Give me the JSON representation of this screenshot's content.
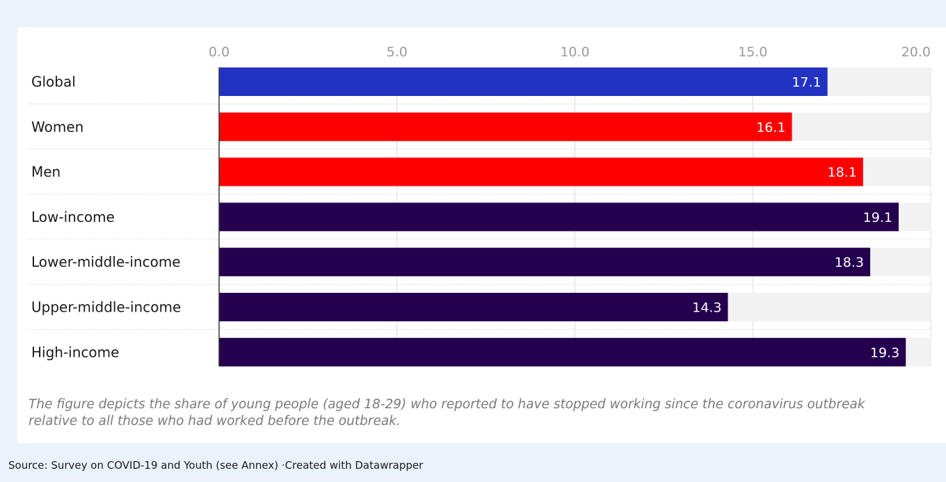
{
  "chart_data": {
    "type": "bar",
    "orientation": "horizontal",
    "categories": [
      "Global",
      "Women",
      "Men",
      "Low-income",
      "Lower-middle-income",
      "Upper-middle-income",
      "High-income"
    ],
    "values": [
      17.1,
      16.1,
      18.1,
      19.1,
      18.3,
      14.3,
      19.3
    ],
    "value_labels": [
      "17.1",
      "16.1",
      "18.1",
      "19.1",
      "18.3",
      "14.3",
      "19.3"
    ],
    "bar_colors": [
      "#2233c4",
      "#ff0000",
      "#ff0000",
      "#25004f",
      "#25004f",
      "#25004f",
      "#25004f"
    ],
    "background_bar_color": "#f2f2f2",
    "x_ticks": [
      "0.0",
      "5.0",
      "10.0",
      "15.0",
      "20.0"
    ],
    "xlim": [
      0,
      20
    ],
    "grid": true,
    "tick_position": "top",
    "title": "",
    "xlabel": "",
    "ylabel": ""
  },
  "notes": "The figure depicts the share of young people (aged 18-29) who reported to have stopped working since the coronavirus outbreak relative to all those who had worked before the outbreak.",
  "footer": "Source: Survey on COVID-19 and Youth (see Annex) ·Created with Datawrapper"
}
